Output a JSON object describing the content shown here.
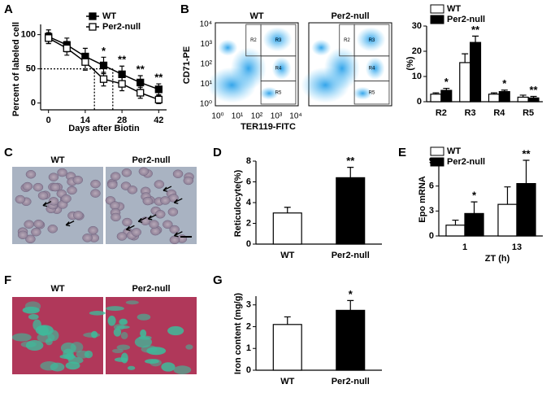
{
  "chart_data": [
    {
      "type": "line",
      "panel": "A",
      "x_label": "Days after Biotin",
      "y_label": "Percent of labeled cell",
      "x": [
        0,
        7,
        14,
        21,
        28,
        35,
        42
      ],
      "series": [
        {
          "name": "WT",
          "color": "#000000",
          "fill": "#000000",
          "values": [
            97,
            85,
            68,
            55,
            42,
            30,
            20
          ],
          "errors": [
            10,
            10,
            12,
            12,
            12,
            10,
            8
          ],
          "significance": [
            null,
            null,
            null,
            "*",
            "**",
            "**",
            "**"
          ]
        },
        {
          "name": "Per2-null",
          "color": "#000000",
          "fill": "#ffffff",
          "values": [
            95,
            80,
            60,
            35,
            28,
            15,
            5
          ],
          "errors": [
            8,
            10,
            12,
            10,
            10,
            8,
            6
          ]
        }
      ],
      "xlim": [
        -3,
        45
      ],
      "ylim": [
        -10,
        115
      ],
      "xticks": [
        0,
        14,
        28,
        42
      ],
      "yticks": [
        0,
        50,
        100
      ],
      "reference_lines": {
        "y": 50,
        "x": [
          17.5,
          24.5
        ]
      }
    },
    {
      "type": "bar",
      "y_label": "(%)",
      "categories": [
        "R2",
        "R3",
        "R4",
        "R5"
      ],
      "series": [
        {
          "name": "WT",
          "color": "#ffffff",
          "values": [
            3,
            15.5,
            3,
            1.8
          ],
          "errors": [
            0.5,
            3.5,
            0.5,
            0.8
          ]
        },
        {
          "name": "Per2-null",
          "color": "#000000",
          "values": [
            4.5,
            23.5,
            4,
            1.5
          ],
          "errors": [
            0.8,
            2.5,
            0.6,
            0.6
          ],
          "significance": [
            "*",
            "**",
            "*",
            "**"
          ]
        }
      ],
      "ylim": [
        0,
        30
      ],
      "yticks": [
        0,
        10,
        20,
        30
      ]
    },
    {
      "type": "bar",
      "panel": "D",
      "y_label": "Reticulocyte(%)",
      "categories": [
        "WT",
        "Per2-null"
      ],
      "values": [
        3.0,
        6.4
      ],
      "errors": [
        0.55,
        1.0
      ],
      "colors": [
        "#ffffff",
        "#000000"
      ],
      "significance": [
        null,
        "**"
      ],
      "ylim": [
        0,
        8
      ],
      "yticks": [
        0,
        2,
        4,
        6,
        8
      ]
    },
    {
      "type": "bar",
      "panel": "E",
      "x_label": "ZT (h)",
      "y_label": "Epo mRNA",
      "categories": [
        "1",
        "13"
      ],
      "series": [
        {
          "name": "WT",
          "color": "#ffffff",
          "values": [
            1.3,
            3.8
          ],
          "errors": [
            0.6,
            2.1
          ]
        },
        {
          "name": "Per2-null",
          "color": "#000000",
          "values": [
            2.7,
            6.3
          ],
          "errors": [
            1.4,
            2.8
          ],
          "significance": [
            "*",
            "**"
          ]
        }
      ],
      "ylim": [
        0,
        9
      ],
      "yticks": [
        0,
        3,
        6,
        9
      ]
    },
    {
      "type": "bar",
      "panel": "G",
      "y_label": "Iron content (mg/g)",
      "categories": [
        "WT",
        "Per2-null"
      ],
      "values": [
        2.1,
        2.75
      ],
      "errors": [
        0.35,
        0.45
      ],
      "colors": [
        "#ffffff",
        "#000000"
      ],
      "significance": [
        null,
        "*"
      ],
      "ylim": [
        0,
        3.4
      ],
      "yticks": [
        0,
        1,
        2,
        3
      ]
    }
  ],
  "flow_cytometry": {
    "panel": "B",
    "titles": [
      "WT",
      "Per2-null"
    ],
    "y_label": "CD71-PE",
    "x_label": "TER119-FITC",
    "ticks": [
      "10⁰",
      "10¹",
      "10²",
      "10³",
      "10⁴"
    ],
    "gates": [
      "R2",
      "R3",
      "R4",
      "R5"
    ]
  },
  "micrographs": [
    {
      "panel": "C",
      "titles": [
        "WT",
        "Per2-null"
      ]
    },
    {
      "panel": "F",
      "titles": [
        "WT",
        "Per2-null"
      ]
    }
  ]
}
